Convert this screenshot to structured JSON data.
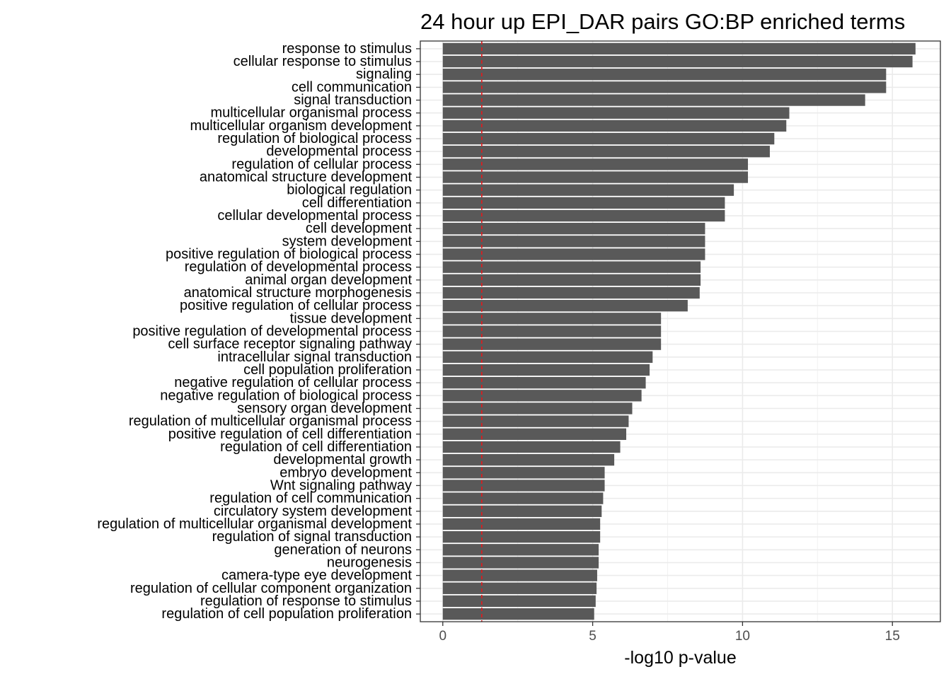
{
  "chart_data": {
    "type": "bar",
    "orientation": "horizontal",
    "title": "24 hour up EPI_DAR pairs GO:BP enriched terms",
    "xlabel": "-log10 p-value",
    "ylabel": "",
    "xlim": [
      -0.75,
      16.6
    ],
    "x_ticks": [
      0,
      5,
      10,
      15
    ],
    "grid": true,
    "bar_color": "#595959",
    "threshold_line": {
      "value": 1.3,
      "color": "#e31a1c",
      "style": "dashed"
    },
    "categories": [
      "response to stimulus",
      "cellular response to stimulus",
      "signaling",
      "cell communication",
      "signal transduction",
      "multicellular organismal process",
      "multicellular organism development",
      "regulation of biological process",
      "developmental process",
      "regulation of cellular process",
      "anatomical structure development",
      "biological regulation",
      "cell differentiation",
      "cellular developmental process",
      "cell development",
      "system development",
      "positive regulation of biological process",
      "regulation of developmental process",
      "animal organ development",
      "anatomical structure morphogenesis",
      "positive regulation of cellular process",
      "tissue development",
      "positive regulation of developmental process",
      "cell surface receptor signaling pathway",
      "intracellular signal transduction",
      "cell population proliferation",
      "negative regulation of cellular process",
      "negative regulation of biological process",
      "sensory organ development",
      "regulation of multicellular organismal process",
      "positive regulation of cell differentiation",
      "regulation of cell differentiation",
      "developmental growth",
      "embryo development",
      "Wnt signaling pathway",
      "regulation of cell communication",
      "circulatory system development",
      "regulation of multicellular organismal development",
      "regulation of signal transduction",
      "generation of neurons",
      "neurogenesis",
      "camera-type eye development",
      "regulation of cellular component organization",
      "regulation of response to stimulus",
      "regulation of cell population proliferation"
    ],
    "values": [
      15.77,
      15.67,
      14.79,
      14.79,
      14.09,
      11.56,
      11.46,
      11.06,
      10.91,
      10.18,
      10.18,
      9.71,
      9.41,
      9.41,
      8.75,
      8.75,
      8.75,
      8.6,
      8.6,
      8.57,
      8.17,
      7.28,
      7.28,
      7.28,
      7.0,
      6.9,
      6.77,
      6.63,
      6.32,
      6.2,
      6.12,
      5.92,
      5.72,
      5.4,
      5.4,
      5.35,
      5.3,
      5.25,
      5.25,
      5.2,
      5.2,
      5.15,
      5.13,
      5.1,
      5.05
    ]
  }
}
